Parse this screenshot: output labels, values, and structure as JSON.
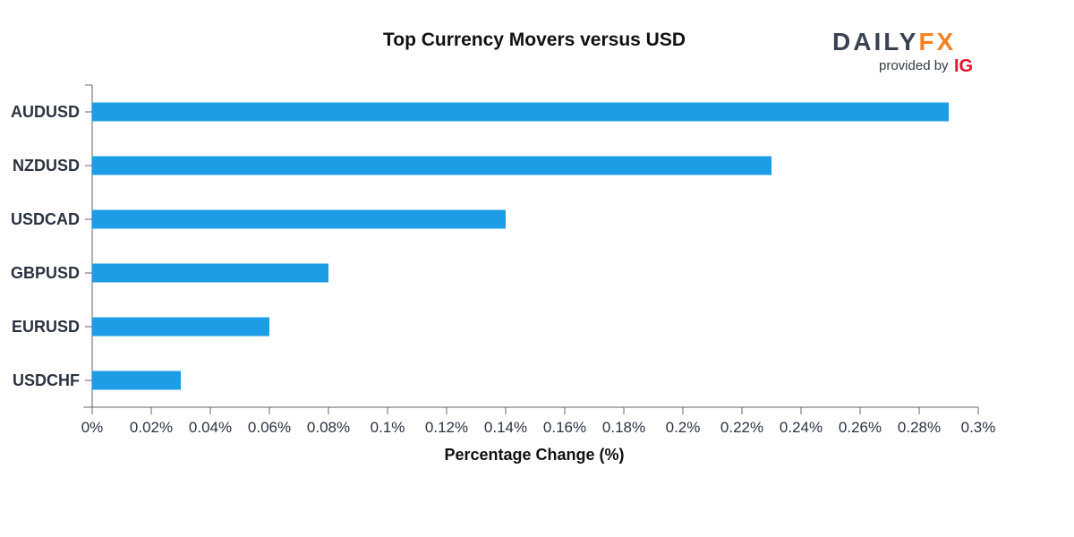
{
  "colors": {
    "bar": "#1d9de5",
    "axis": "#666666",
    "text": "#2b3340",
    "logo_dark": "#3a4150",
    "logo_orange": "#f5821f",
    "logo_red": "#e3152c"
  },
  "logo": {
    "daily": "DAILY",
    "fx": "FX",
    "provided_by": "provided by",
    "ig": "IG"
  },
  "chart_data": {
    "type": "bar",
    "orientation": "horizontal",
    "title": "Top Currency Movers versus USD",
    "xlabel": "Percentage Change (%)",
    "ylabel": "",
    "categories": [
      "AUDUSD",
      "NZDUSD",
      "USDCAD",
      "GBPUSD",
      "EURUSD",
      "USDCHF"
    ],
    "values": [
      0.29,
      0.23,
      0.14,
      0.08,
      0.06,
      0.03
    ],
    "xlim": [
      0,
      0.3
    ],
    "x_ticks": [
      0,
      0.02,
      0.04,
      0.06,
      0.08,
      0.1,
      0.12,
      0.14,
      0.16,
      0.18,
      0.2,
      0.22,
      0.24,
      0.26,
      0.28,
      0.3
    ],
    "x_tick_labels": [
      "0%",
      "0.02%",
      "0.04%",
      "0.06%",
      "0.08%",
      "0.1%",
      "0.12%",
      "0.14%",
      "0.16%",
      "0.18%",
      "0.2%",
      "0.22%",
      "0.24%",
      "0.26%",
      "0.28%",
      "0.3%"
    ],
    "grid": false,
    "legend": "none"
  }
}
